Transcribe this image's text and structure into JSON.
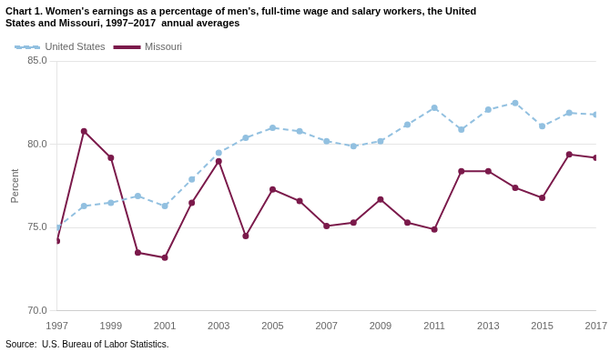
{
  "chart_data": {
    "type": "line",
    "title": [
      "Chart 1. Women's earnings as a percentage of men's, full-time wage and salary workers, the United",
      "States and Missouri, 1997–2017  annual averages"
    ],
    "y_label": "Percent",
    "annotations": [
      "Source:  U.S. Bureau of Labor Statistics."
    ],
    "x": [
      1997,
      1998,
      1999,
      2000,
      2001,
      2002,
      2003,
      2004,
      2005,
      2006,
      2007,
      2008,
      2009,
      2010,
      2011,
      2012,
      2013,
      2014,
      2015,
      2016,
      2017
    ],
    "series": [
      {
        "name": "United States",
        "color": "#92c0e0",
        "marker": "circle",
        "line_style": "dashed",
        "values": [
          75.0,
          76.3,
          76.5,
          76.9,
          76.3,
          77.9,
          79.5,
          80.4,
          81.0,
          80.8,
          80.2,
          79.9,
          80.2,
          81.2,
          82.2,
          80.9,
          82.1,
          82.5,
          81.1,
          81.9,
          81.8
        ]
      },
      {
        "name": "Missouri",
        "color": "#7b1a4b",
        "marker": "circle",
        "line_style": "solid",
        "values": [
          74.2,
          80.8,
          79.2,
          73.5,
          73.2,
          76.5,
          79.0,
          74.5,
          77.3,
          76.6,
          75.1,
          75.3,
          76.7,
          75.3,
          74.9,
          78.4,
          78.4,
          77.4,
          76.8,
          79.4,
          79.2
        ]
      }
    ],
    "xlim": [
      1997,
      2017
    ],
    "xticks": [
      1997,
      1999,
      2001,
      2003,
      2005,
      2007,
      2009,
      2011,
      2013,
      2015,
      2017
    ],
    "ylim": [
      70.0,
      85.0
    ],
    "yticks": [
      {
        "value": 70.0,
        "label": "70.0"
      },
      {
        "value": 75.0,
        "label": "75.0"
      },
      {
        "value": 80.0,
        "label": "80.0"
      },
      {
        "value": 85.0,
        "label": "85.0"
      }
    ],
    "grid": "y",
    "legend": "upper left"
  }
}
